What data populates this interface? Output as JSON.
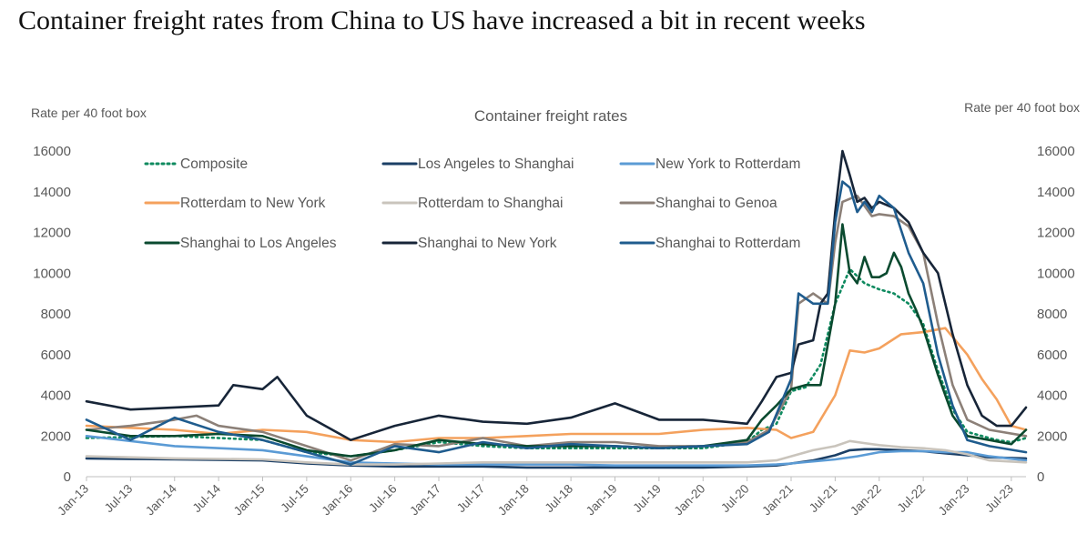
{
  "headline": "Container freight rates from China to US have increased a bit in recent weeks",
  "chart_data": {
    "type": "line",
    "title": "Container freight rates",
    "ylabel_left": "Rate per 40 foot box",
    "ylabel_right": "Rate per 40 foot box",
    "ylim": [
      0,
      16000
    ],
    "yticks": [
      0,
      2000,
      4000,
      6000,
      8000,
      10000,
      12000,
      14000,
      16000
    ],
    "xlim": [
      "2013-01",
      "2023-09"
    ],
    "xticks": [
      "Jan-13",
      "Jul-13",
      "Jan-14",
      "Jul-14",
      "Jan-15",
      "Jul-15",
      "Jan-16",
      "Jul-16",
      "Jan-17",
      "Jul-17",
      "Jan-18",
      "Jul-18",
      "Jan-19",
      "Jul-19",
      "Jan-20",
      "Jul-20",
      "Jan-21",
      "Jul-21",
      "Jan-22",
      "Jul-22",
      "Jan-23",
      "Jul-23"
    ],
    "grid": false,
    "legend_position": "top",
    "series": [
      {
        "name": "Composite",
        "color": "#0e8a5f",
        "dash": "dotted",
        "x": [
          "2013-01",
          "2014-01",
          "2015-01",
          "2015-07",
          "2016-01",
          "2016-07",
          "2017-01",
          "2017-07",
          "2018-01",
          "2018-07",
          "2019-01",
          "2019-07",
          "2020-01",
          "2020-07",
          "2020-09",
          "2020-11",
          "2021-01",
          "2021-03",
          "2021-05",
          "2021-07",
          "2021-09",
          "2021-11",
          "2022-01",
          "2022-03",
          "2022-05",
          "2022-07",
          "2022-09",
          "2022-11",
          "2023-01",
          "2023-03",
          "2023-05",
          "2023-07",
          "2023-09"
        ],
        "y": [
          1900,
          2000,
          1800,
          1200,
          1000,
          1300,
          1700,
          1500,
          1400,
          1400,
          1400,
          1400,
          1400,
          1700,
          2300,
          2600,
          4200,
          4400,
          5500,
          8500,
          10200,
          9500,
          9200,
          9000,
          8500,
          7500,
          5200,
          3300,
          2200,
          2000,
          1800,
          1700,
          1900
        ]
      },
      {
        "name": "Los Angeles to Shanghai",
        "color": "#1b3f66",
        "dash": "solid",
        "x": [
          "2013-01",
          "2014-01",
          "2015-01",
          "2015-07",
          "2016-01",
          "2016-07",
          "2017-01",
          "2017-07",
          "2018-01",
          "2018-07",
          "2019-01",
          "2019-07",
          "2020-01",
          "2020-07",
          "2020-11",
          "2021-01",
          "2021-04",
          "2021-07",
          "2021-09",
          "2021-11",
          "2022-01",
          "2022-04",
          "2022-07",
          "2022-10",
          "2023-01",
          "2023-04",
          "2023-09"
        ],
        "y": [
          900,
          850,
          800,
          650,
          550,
          500,
          500,
          500,
          450,
          450,
          450,
          450,
          450,
          500,
          550,
          650,
          800,
          1050,
          1300,
          1350,
          1350,
          1300,
          1250,
          1150,
          1050,
          950,
          900
        ]
      },
      {
        "name": "New York to Rotterdam",
        "color": "#5b9bd5",
        "dash": "solid",
        "x": [
          "2013-01",
          "2014-01",
          "2015-01",
          "2015-07",
          "2016-01",
          "2016-07",
          "2017-01",
          "2017-07",
          "2018-01",
          "2018-07",
          "2019-01",
          "2019-07",
          "2020-01",
          "2020-07",
          "2020-11",
          "2021-01",
          "2021-04",
          "2021-07",
          "2021-10",
          "2022-01",
          "2022-04",
          "2022-07",
          "2022-10",
          "2023-01",
          "2023-04",
          "2023-09"
        ],
        "y": [
          2000,
          1500,
          1300,
          1000,
          700,
          650,
          600,
          600,
          600,
          600,
          550,
          550,
          550,
          550,
          600,
          650,
          750,
          850,
          1000,
          1200,
          1250,
          1250,
          1200,
          1200,
          1000,
          800
        ]
      },
      {
        "name": "Rotterdam to New York",
        "color": "#f4a15d",
        "dash": "solid",
        "x": [
          "2013-01",
          "2014-01",
          "2014-07",
          "2015-01",
          "2015-07",
          "2016-01",
          "2016-07",
          "2017-01",
          "2017-07",
          "2018-01",
          "2018-07",
          "2019-01",
          "2019-07",
          "2020-01",
          "2020-07",
          "2020-11",
          "2021-01",
          "2021-04",
          "2021-07",
          "2021-09",
          "2021-11",
          "2022-01",
          "2022-04",
          "2022-07",
          "2022-10",
          "2023-01",
          "2023-03",
          "2023-05",
          "2023-07",
          "2023-09"
        ],
        "y": [
          2500,
          2300,
          2100,
          2300,
          2200,
          1800,
          1700,
          1900,
          1900,
          2000,
          2100,
          2100,
          2100,
          2300,
          2400,
          2300,
          1900,
          2200,
          4000,
          6200,
          6100,
          6300,
          7000,
          7100,
          7300,
          6000,
          4800,
          3800,
          2500,
          2300
        ]
      },
      {
        "name": "Rotterdam to Shanghai",
        "color": "#c9c4bc",
        "dash": "solid",
        "x": [
          "2013-01",
          "2014-01",
          "2015-01",
          "2015-07",
          "2016-01",
          "2016-07",
          "2017-01",
          "2017-07",
          "2018-01",
          "2018-07",
          "2019-01",
          "2019-07",
          "2020-01",
          "2020-07",
          "2020-11",
          "2021-01",
          "2021-04",
          "2021-07",
          "2021-09",
          "2021-11",
          "2022-01",
          "2022-04",
          "2022-07",
          "2022-10",
          "2023-01",
          "2023-04",
          "2023-09"
        ],
        "y": [
          1000,
          900,
          850,
          700,
          600,
          600,
          650,
          700,
          700,
          700,
          700,
          700,
          700,
          700,
          800,
          1000,
          1300,
          1500,
          1750,
          1650,
          1550,
          1450,
          1400,
          1300,
          1100,
          800,
          700
        ]
      },
      {
        "name": "Shanghai to Genoa",
        "color": "#8c8078",
        "dash": "solid",
        "x": [
          "2013-01",
          "2013-07",
          "2014-01",
          "2014-04",
          "2014-07",
          "2015-01",
          "2015-07",
          "2016-01",
          "2016-07",
          "2017-01",
          "2017-07",
          "2018-01",
          "2018-07",
          "2019-01",
          "2019-07",
          "2020-01",
          "2020-07",
          "2020-10",
          "2021-01",
          "2021-02",
          "2021-04",
          "2021-06",
          "2021-07",
          "2021-08",
          "2021-10",
          "2021-12",
          "2022-01",
          "2022-03",
          "2022-05",
          "2022-07",
          "2022-09",
          "2022-11",
          "2023-01",
          "2023-04",
          "2023-09"
        ],
        "y": [
          2300,
          2500,
          2800,
          3000,
          2500,
          2200,
          1500,
          800,
          1600,
          1500,
          1900,
          1500,
          1700,
          1700,
          1500,
          1500,
          1700,
          2300,
          4300,
          8500,
          9000,
          8500,
          11500,
          13500,
          13800,
          12800,
          12900,
          12800,
          12300,
          11000,
          7500,
          4500,
          2800,
          2300,
          2000
        ]
      },
      {
        "name": "Shanghai to Los Angeles",
        "color": "#0a4a2f",
        "dash": "solid",
        "x": [
          "2013-01",
          "2013-07",
          "2014-01",
          "2014-07",
          "2015-01",
          "2015-07",
          "2016-01",
          "2016-07",
          "2017-01",
          "2017-07",
          "2018-01",
          "2018-07",
          "2019-01",
          "2019-07",
          "2020-01",
          "2020-07",
          "2020-09",
          "2020-11",
          "2021-01",
          "2021-03",
          "2021-05",
          "2021-07",
          "2021-08",
          "2021-09",
          "2021-10",
          "2021-11",
          "2021-12",
          "2022-01",
          "2022-02",
          "2022-03",
          "2022-04",
          "2022-05",
          "2022-06",
          "2022-07",
          "2022-09",
          "2022-11",
          "2023-01",
          "2023-04",
          "2023-07",
          "2023-09"
        ],
        "y": [
          2300,
          2000,
          2000,
          2100,
          2000,
          1300,
          1000,
          1300,
          1800,
          1600,
          1500,
          1500,
          1500,
          1400,
          1500,
          1800,
          2800,
          3500,
          4300,
          4500,
          4500,
          8500,
          12400,
          10000,
          9500,
          10800,
          9800,
          9800,
          10000,
          11000,
          10300,
          9000,
          8200,
          7300,
          5000,
          3000,
          2000,
          1800,
          1600,
          2300
        ]
      },
      {
        "name": "Shanghai to New York",
        "color": "#172538",
        "dash": "solid",
        "x": [
          "2013-01",
          "2013-07",
          "2014-01",
          "2014-07",
          "2014-09",
          "2015-01",
          "2015-03",
          "2015-07",
          "2016-01",
          "2016-07",
          "2017-01",
          "2017-07",
          "2018-01",
          "2018-07",
          "2019-01",
          "2019-07",
          "2020-01",
          "2020-07",
          "2020-09",
          "2020-11",
          "2021-01",
          "2021-02",
          "2021-04",
          "2021-05",
          "2021-06",
          "2021-07",
          "2021-08",
          "2021-09",
          "2021-10",
          "2021-11",
          "2021-12",
          "2022-01",
          "2022-03",
          "2022-05",
          "2022-07",
          "2022-09",
          "2022-11",
          "2023-01",
          "2023-03",
          "2023-05",
          "2023-07",
          "2023-09"
        ],
        "y": [
          3700,
          3300,
          3400,
          3500,
          4500,
          4300,
          4900,
          3000,
          1800,
          2500,
          3000,
          2700,
          2600,
          2900,
          3600,
          2800,
          2800,
          2600,
          3700,
          4900,
          5100,
          6500,
          6700,
          8500,
          9000,
          13000,
          16000,
          14800,
          13500,
          13700,
          13200,
          13500,
          13200,
          12500,
          11000,
          10000,
          7000,
          4500,
          3000,
          2500,
          2500,
          3400
        ]
      },
      {
        "name": "Shanghai to Rotterdam",
        "color": "#1f5c8e",
        "dash": "solid",
        "x": [
          "2013-01",
          "2013-07",
          "2014-01",
          "2014-07",
          "2015-01",
          "2015-07",
          "2016-01",
          "2016-07",
          "2017-01",
          "2017-07",
          "2018-01",
          "2018-07",
          "2019-01",
          "2019-07",
          "2020-01",
          "2020-07",
          "2020-10",
          "2021-01",
          "2021-02",
          "2021-04",
          "2021-06",
          "2021-07",
          "2021-08",
          "2021-09",
          "2021-10",
          "2021-11",
          "2021-12",
          "2022-01",
          "2022-03",
          "2022-05",
          "2022-07",
          "2022-09",
          "2022-11",
          "2023-01",
          "2023-04",
          "2023-09"
        ],
        "y": [
          2800,
          1800,
          2900,
          2200,
          1800,
          1200,
          600,
          1500,
          1200,
          1700,
          1400,
          1600,
          1500,
          1400,
          1500,
          1600,
          2200,
          4800,
          9000,
          8500,
          8500,
          12500,
          14500,
          14200,
          13000,
          13500,
          13000,
          13800,
          13200,
          11000,
          9500,
          6000,
          3500,
          1800,
          1500,
          1200
        ]
      }
    ]
  }
}
